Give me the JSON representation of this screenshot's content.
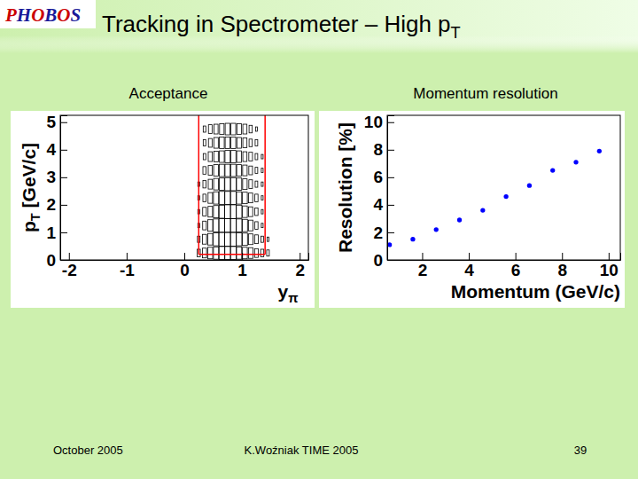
{
  "slide": {
    "logo": "PHOBOS",
    "title": "Tracking in Spectrometer – High pT",
    "footer": [
      "October 2005",
      "K.Woźniak TIME 2005",
      "39"
    ]
  },
  "chart_data": [
    {
      "type": "histogram2d",
      "title": "Acceptance",
      "xlabel": "yπ",
      "ylabel": "pT [GeV/c]",
      "xlim": [
        -2.15,
        2.15
      ],
      "ylim": [
        0,
        5.25
      ],
      "xticks": [
        -2,
        -1,
        0,
        1,
        2
      ],
      "yticks": [
        0,
        1,
        2,
        3,
        4,
        5
      ],
      "color": "#000000",
      "x_bins": [
        0.2,
        0.3,
        0.4,
        0.5,
        0.6,
        0.7,
        0.8,
        0.9,
        1.0,
        1.1,
        1.2,
        1.3,
        1.4,
        1.5
      ],
      "y_bins": [
        0,
        0.5,
        1,
        1.5,
        2,
        2.5,
        3,
        3.5,
        4,
        4.5,
        5
      ],
      "counts": [
        [
          3,
          5,
          7,
          8,
          9,
          9,
          9,
          8,
          7,
          6,
          4,
          3,
          2
        ],
        [
          2,
          5,
          7,
          9,
          10,
          10,
          10,
          9,
          8,
          6,
          4,
          2,
          1
        ],
        [
          1,
          4,
          7,
          9,
          10,
          10,
          10,
          9,
          8,
          6,
          3,
          1,
          0
        ],
        [
          1,
          4,
          6,
          8,
          9,
          10,
          10,
          9,
          7,
          5,
          3,
          1,
          0
        ],
        [
          1,
          3,
          6,
          8,
          9,
          9,
          9,
          8,
          7,
          5,
          3,
          1,
          0
        ],
        [
          1,
          3,
          5,
          7,
          8,
          9,
          9,
          8,
          6,
          4,
          2,
          1,
          0
        ],
        [
          0,
          3,
          5,
          7,
          8,
          8,
          8,
          7,
          6,
          4,
          2,
          1,
          0
        ],
        [
          0,
          2,
          5,
          6,
          7,
          8,
          8,
          7,
          5,
          4,
          2,
          1,
          0
        ],
        [
          0,
          2,
          4,
          6,
          7,
          7,
          7,
          6,
          5,
          3,
          2,
          0,
          0
        ],
        [
          0,
          2,
          4,
          5,
          6,
          7,
          7,
          6,
          5,
          3,
          1,
          0,
          0
        ]
      ],
      "acceptance": {
        "color": "#ff0000",
        "x": [
          0.25,
          1.4
        ],
        "y": 0.2
      }
    },
    {
      "type": "scatter",
      "title": "Momentum resolution",
      "xlabel": "Momentum (GeV/c)",
      "ylabel": "Resolution [%]",
      "xlim": [
        0.5,
        10.5
      ],
      "ylim": [
        0,
        10.5
      ],
      "xticks": [
        2,
        4,
        6,
        8,
        10
      ],
      "yticks": [
        0,
        2,
        4,
        6,
        8,
        10
      ],
      "x": [
        0.6,
        1.6,
        2.6,
        3.6,
        4.6,
        5.6,
        6.6,
        7.6,
        8.6,
        9.6
      ],
      "values": [
        1.1,
        1.5,
        2.2,
        2.9,
        3.6,
        4.6,
        5.4,
        6.5,
        7.1,
        7.9
      ],
      "color": "#0000ff",
      "marker": "circle"
    }
  ]
}
